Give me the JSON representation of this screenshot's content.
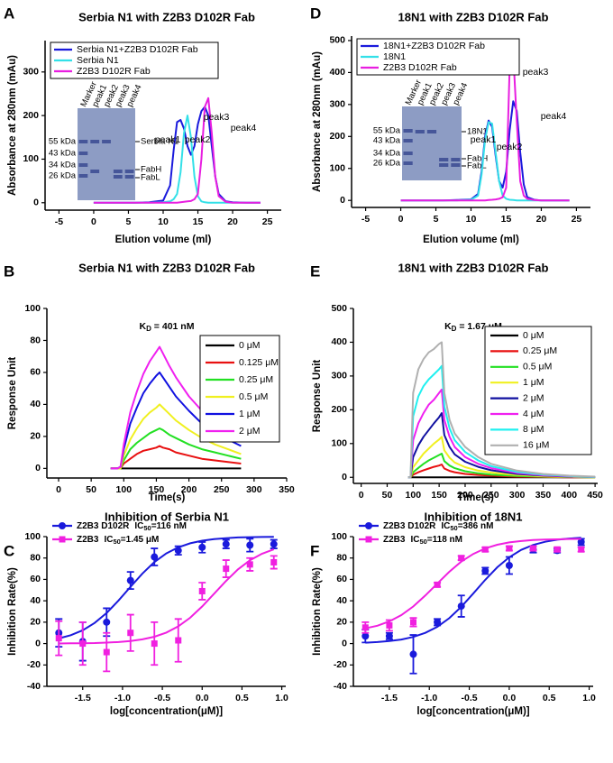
{
  "chart_data": [
    {
      "type": "line",
      "label": "A",
      "title": "Serbia N1 with Z2B3 D102R Fab",
      "x_label": "Elution volume (ml)",
      "y_label": "Absorbance at 280nm (mAu)",
      "x": [
        0,
        2,
        4,
        6,
        8,
        10,
        11,
        11.5,
        12,
        12.5,
        13,
        13.5,
        14,
        14.5,
        15,
        15.5,
        16,
        16.5,
        17,
        17.5,
        18,
        19,
        20,
        22,
        24
      ],
      "series": [
        {
          "name": "Serbia N1+Z2B3 D102R Fab",
          "color": "#1a1adc",
          "values": [
            0,
            0,
            0,
            0,
            1,
            5,
            40,
            120,
            185,
            190,
            170,
            130,
            110,
            130,
            180,
            210,
            220,
            200,
            130,
            60,
            20,
            3,
            1,
            0,
            0
          ]
        },
        {
          "name": "Serbia N1",
          "color": "#33e0e8",
          "values": [
            0,
            0,
            0,
            0,
            0,
            1,
            3,
            8,
            20,
            70,
            160,
            200,
            150,
            60,
            15,
            3,
            1,
            0,
            0,
            0,
            0,
            0,
            0,
            0,
            0
          ]
        },
        {
          "name": "Z2B3 D102R Fab",
          "color": "#e81ee0",
          "values": [
            0,
            0,
            0,
            0,
            0,
            0,
            0,
            0,
            0,
            1,
            2,
            3,
            4,
            8,
            20,
            100,
            220,
            240,
            160,
            60,
            15,
            2,
            0,
            0,
            0
          ]
        }
      ],
      "xlim": [
        -7,
        27
      ],
      "xticks": [
        -5,
        0,
        5,
        10,
        15,
        20,
        25
      ],
      "ylim": [
        -17,
        372
      ],
      "yticks": [
        0,
        100,
        200,
        300
      ],
      "legend": "upper left",
      "peak_labels": [
        "peak1",
        "peak2",
        "peak3",
        "peak4"
      ],
      "gel": {
        "lanes": [
          "Marker",
          "peak1",
          "peak2",
          "peak3",
          "peak4"
        ],
        "markers": [
          "55 kDa",
          "43 kDa",
          "34 kDa",
          "26 kDa"
        ],
        "bands": [
          "Serbia N1",
          "FabH",
          "FabL"
        ]
      }
    },
    {
      "type": "line",
      "label": "B",
      "title": "Serbia N1 with Z2B3 D102R Fab",
      "x_label": "Time(s)",
      "y_label": "Response Unit",
      "kd": {
        "main": "K",
        "sub": "D",
        "rest": " = 401 nM"
      },
      "x": [
        80,
        90,
        95,
        100,
        110,
        120,
        130,
        140,
        150,
        155,
        160,
        170,
        180,
        200,
        220,
        240,
        260,
        280
      ],
      "series": [
        {
          "name": "0 μM",
          "color": "#000000",
          "values": [
            0,
            0,
            0,
            0,
            0,
            0,
            0,
            0,
            0,
            0,
            0,
            0,
            0,
            0,
            0,
            0,
            0,
            0
          ]
        },
        {
          "name": "0.125 μM",
          "color": "#e81010",
          "values": [
            0,
            0,
            0,
            3,
            6,
            9,
            11,
            12,
            13,
            14,
            13,
            12,
            10,
            8,
            6,
            5,
            4,
            3
          ]
        },
        {
          "name": "0.25 μM",
          "color": "#22e022",
          "values": [
            0,
            0,
            0,
            5,
            12,
            16,
            19,
            22,
            24,
            25,
            24,
            21,
            19,
            15,
            12,
            10,
            8,
            6
          ]
        },
        {
          "name": "0.5 μM",
          "color": "#f0f020",
          "values": [
            0,
            0,
            0,
            8,
            18,
            25,
            31,
            35,
            38,
            40,
            38,
            34,
            30,
            24,
            19,
            15,
            12,
            9
          ]
        },
        {
          "name": "1 μM",
          "color": "#1010e0",
          "values": [
            0,
            0,
            1,
            12,
            28,
            38,
            47,
            53,
            58,
            60,
            57,
            51,
            45,
            36,
            28,
            23,
            18,
            14
          ]
        },
        {
          "name": "2 μM",
          "color": "#f020f0",
          "values": [
            0,
            0,
            1,
            15,
            35,
            48,
            59,
            67,
            73,
            76,
            72,
            64,
            57,
            45,
            36,
            29,
            23,
            18
          ]
        }
      ],
      "xlim": [
        -18,
        350
      ],
      "xticks": [
        0,
        50,
        100,
        150,
        200,
        250,
        300,
        350
      ],
      "ylim": [
        -6,
        100
      ],
      "yticks": [
        0,
        20,
        40,
        60,
        80,
        100
      ],
      "legend": "upper right"
    },
    {
      "type": "scatter",
      "label": "C",
      "title": "Inhibition of Serbia N1",
      "x_label": "log[concentration(μM)]",
      "y_label": "Inhibition Rate(%)",
      "ic50_text": "IC",
      "ic50_sub": "50",
      "x": [
        -1.8,
        -1.5,
        -1.2,
        -0.9,
        -0.6,
        -0.3,
        0,
        0.3,
        0.6,
        0.9
      ],
      "fit_x": [
        -1.8,
        -1.65,
        -1.5,
        -1.35,
        -1.2,
        -1.05,
        -0.9,
        -0.75,
        -0.6,
        -0.45,
        -0.3,
        -0.15,
        0,
        0.15,
        0.3,
        0.45,
        0.6,
        0.75,
        0.9
      ],
      "series": [
        {
          "name": "Z2B3 D102R",
          "ic50": "=116 nM",
          "color": "#1a1adc",
          "marker": "circle",
          "values": [
            10,
            2,
            20,
            59,
            81,
            87,
            90,
            93,
            92,
            93
          ],
          "errors": [
            13,
            18,
            13,
            8,
            8,
            4,
            5,
            4,
            6,
            4
          ],
          "fit": [
            4.8,
            7.8,
            12.5,
            19.3,
            28.6,
            40.3,
            53.1,
            65.5,
            76.2,
            84.3,
            90.0,
            93.8,
            96.2,
            97.7,
            98.6,
            99.2,
            99.5,
            99.7,
            99.8
          ]
        },
        {
          "name": "Z2B3",
          "ic50": "=1.45 μM",
          "color": "#f020e0",
          "marker": "square",
          "values": [
            5,
            0,
            -8,
            10,
            0,
            3,
            49,
            70,
            74,
            76
          ],
          "errors": [
            16,
            20,
            18,
            17,
            20,
            20,
            8,
            8,
            6,
            6
          ],
          "fit": [
            0.1,
            0.2,
            0.3,
            0.5,
            0.9,
            1.4,
            2.4,
            3.9,
            6.4,
            10.3,
            16.1,
            24.2,
            34.7,
            46.6,
            58.6,
            69.4,
            77.9,
            84.0,
            88.1
          ]
        }
      ],
      "xlim": [
        -1.95,
        1.05
      ],
      "xticks": [
        -1.5,
        {
          "value": -1.0,
          "label": "-1.0"
        },
        -0.5,
        {
          "value": 0,
          "label": "0.0"
        },
        0.5,
        {
          "value": 1.0,
          "label": "1.0"
        }
      ],
      "ylim": [
        -40,
        100
      ],
      "yticks": [
        -40,
        -20,
        0,
        20,
        40,
        60,
        80,
        100
      ],
      "legend": "top left"
    },
    {
      "type": "line",
      "label": "D",
      "title": "18N1 with Z2B3 D102R Fab",
      "x_label": "Elution volume (ml)",
      "y_label": "Absorbance at 280nm (mAu)",
      "x": [
        0,
        2,
        4,
        6,
        8,
        10,
        11,
        11.5,
        12,
        12.5,
        13,
        13.5,
        14,
        14.5,
        15,
        15.5,
        16,
        16.5,
        17,
        17.5,
        18,
        19,
        20,
        22,
        24
      ],
      "series": [
        {
          "name": "18N1+Z2B3 D102R Fab",
          "color": "#1a1adc",
          "values": [
            0,
            0,
            0,
            0,
            1,
            3,
            20,
            90,
            200,
            250,
            230,
            140,
            60,
            40,
            90,
            220,
            310,
            280,
            150,
            50,
            10,
            2,
            0,
            0,
            0
          ]
        },
        {
          "name": "18N1",
          "color": "#33e0e8",
          "values": [
            0,
            0,
            0,
            0,
            0,
            2,
            15,
            80,
            190,
            245,
            240,
            150,
            60,
            15,
            5,
            2,
            1,
            0,
            0,
            0,
            0,
            0,
            0,
            0,
            0
          ]
        },
        {
          "name": "Z2B3 D102R Fab",
          "color": "#e81ee0",
          "values": [
            0,
            0,
            0,
            0,
            0,
            0,
            0,
            0,
            0,
            1,
            2,
            3,
            5,
            10,
            40,
            420,
            460,
            250,
            60,
            15,
            5,
            1,
            0,
            0,
            0
          ]
        }
      ],
      "xlim": [
        -7,
        27
      ],
      "xticks": [
        -5,
        0,
        5,
        10,
        15,
        20,
        25
      ],
      "ylim": [
        -22,
        514
      ],
      "yticks": [
        0,
        100,
        200,
        300,
        400,
        500
      ],
      "legend": "upper left",
      "peak_labels": [
        "peak1",
        "peak2",
        "peak3",
        "peak4"
      ],
      "gel": {
        "lanes": [
          "Marker",
          "peak1",
          "peak2",
          "peak3",
          "peak4"
        ],
        "markers": [
          "55 kDa",
          "43 kDa",
          "34 kDa",
          "26 kDa"
        ],
        "bands": [
          "18N1",
          "FabH",
          "FabL"
        ]
      }
    },
    {
      "type": "line",
      "label": "E",
      "title": "18N1 with Z2B3 D102R Fab",
      "x_label": "Time(s)",
      "y_label": "Response Unit",
      "kd": {
        "main": "K",
        "sub": "D",
        "rest": " = 1.67 μM"
      },
      "x": [
        90,
        95,
        100,
        110,
        120,
        130,
        140,
        150,
        155,
        160,
        170,
        180,
        200,
        225,
        250,
        300,
        350,
        400,
        450
      ],
      "series": [
        {
          "name": "0 μM",
          "color": "#000000",
          "values": [
            0,
            0,
            0,
            0,
            0,
            0,
            0,
            0,
            0,
            0,
            0,
            0,
            0,
            0,
            0,
            0,
            0,
            0,
            0
          ]
        },
        {
          "name": "0.25 μM",
          "color": "#e81010",
          "values": [
            0,
            0,
            8,
            15,
            21,
            26,
            31,
            35,
            38,
            26,
            19,
            15,
            10,
            7,
            5,
            2,
            1,
            0,
            0
          ]
        },
        {
          "name": "0.5 μM",
          "color": "#22e022",
          "values": [
            0,
            0,
            15,
            28,
            40,
            50,
            58,
            66,
            70,
            48,
            35,
            27,
            18,
            12,
            8,
            4,
            2,
            1,
            0
          ]
        },
        {
          "name": "1 μM",
          "color": "#f0f020",
          "values": [
            0,
            0,
            30,
            50,
            70,
            85,
            100,
            112,
            120,
            80,
            58,
            44,
            30,
            20,
            14,
            7,
            3,
            1,
            0
          ]
        },
        {
          "name": "2 μM",
          "color": "#1010a0",
          "values": [
            0,
            0,
            60,
            95,
            120,
            140,
            160,
            178,
            190,
            125,
            90,
            68,
            46,
            31,
            21,
            10,
            5,
            2,
            1
          ]
        },
        {
          "name": "4 μM",
          "color": "#f020f0",
          "values": [
            0,
            0,
            110,
            160,
            190,
            215,
            230,
            250,
            260,
            170,
            120,
            90,
            60,
            40,
            27,
            13,
            6,
            3,
            1
          ]
        },
        {
          "name": "8 μM",
          "color": "#20f0f0",
          "values": [
            0,
            0,
            180,
            240,
            270,
            290,
            305,
            320,
            330,
            210,
            145,
            110,
            75,
            50,
            33,
            16,
            8,
            4,
            1
          ]
        },
        {
          "name": "16 μM",
          "color": "#b0b0b0",
          "values": [
            0,
            0,
            250,
            320,
            350,
            370,
            380,
            395,
            400,
            250,
            170,
            130,
            90,
            60,
            40,
            20,
            10,
            5,
            2
          ]
        }
      ],
      "xlim": [
        -15,
        455
      ],
      "xticks": [
        0,
        50,
        100,
        150,
        200,
        250,
        300,
        350,
        400,
        450
      ],
      "ylim": [
        -18,
        500
      ],
      "yticks": [
        0,
        100,
        200,
        300,
        400,
        500
      ],
      "legend": "upper right"
    },
    {
      "type": "scatter",
      "label": "F",
      "title": "Inhibition of 18N1",
      "x_label": "log[concentration(μM)]",
      "y_label": "Inhibition Rate(%)",
      "ic50_text": "IC",
      "ic50_sub": "50",
      "x": [
        -1.8,
        -1.5,
        -1.2,
        -0.9,
        -0.6,
        -0.3,
        0,
        0.3,
        0.6,
        0.9
      ],
      "fit_x": [
        -1.8,
        -1.65,
        -1.5,
        -1.35,
        -1.2,
        -1.05,
        -0.9,
        -0.75,
        -0.6,
        -0.45,
        -0.3,
        -0.15,
        0,
        0.15,
        0.3,
        0.45,
        0.6,
        0.75,
        0.9
      ],
      "series": [
        {
          "name": "Z2B3 D102R",
          "ic50": "=386 nM",
          "color": "#1a1adc",
          "marker": "circle",
          "values": [
            7,
            7,
            -10,
            20,
            35,
            68,
            73,
            88,
            87,
            95
          ],
          "errors": [
            6,
            3,
            18,
            3,
            10,
            3,
            8,
            3,
            2,
            3
          ],
          "fit": [
            0.8,
            1.4,
            2.3,
            3.8,
            6.2,
            10.0,
            15.7,
            23.8,
            34.4,
            46.8,
            59.6,
            71.3,
            80.7,
            87.6,
            92.2,
            95.2,
            97.1,
            98.2,
            98.9
          ]
        },
        {
          "name": "Z2B3",
          "ic50": "=118 nM",
          "color": "#f020e0",
          "marker": "square",
          "values": [
            15,
            17,
            20,
            55,
            80,
            88,
            89,
            89,
            88,
            88
          ],
          "errors": [
            5,
            5,
            4,
            2,
            2,
            2,
            2,
            2,
            2,
            2
          ],
          "fit": [
            14.2,
            16.7,
            20.7,
            26.6,
            34.7,
            44.9,
            56.1,
            67.1,
            76.6,
            83.8,
            89.0,
            92.4,
            94.6,
            95.9,
            96.8,
            97.3,
            97.5,
            97.8,
            97.9
          ]
        }
      ],
      "xlim": [
        -1.95,
        1.05
      ],
      "xticks": [
        -1.5,
        {
          "value": -1.0,
          "label": "-1.0"
        },
        -0.5,
        {
          "value": 0,
          "label": "0.0"
        },
        0.5,
        {
          "value": 1.0,
          "label": "1.0"
        }
      ],
      "ylim": [
        -40,
        100
      ],
      "yticks": [
        -40,
        -20,
        0,
        20,
        40,
        60,
        80,
        100
      ],
      "legend": "top left"
    }
  ]
}
